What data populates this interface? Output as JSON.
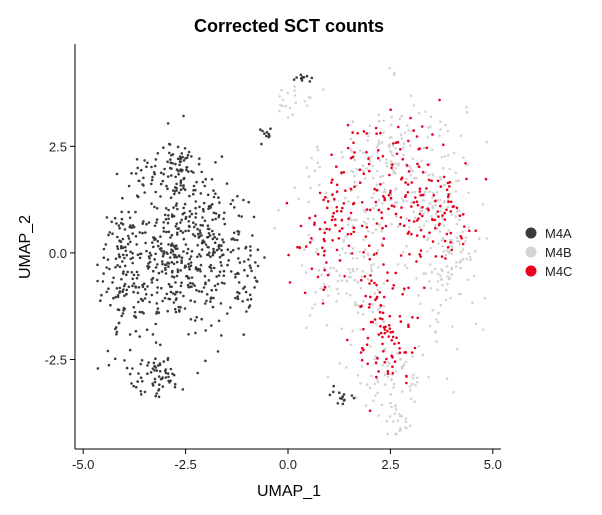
{
  "chart_data": {
    "type": "scatter",
    "title": "Corrected SCT counts",
    "xlabel": "UMAP_1",
    "ylabel": "UMAP_2",
    "xlim": [
      -5.2,
      5.2
    ],
    "ylim": [
      -4.6,
      4.9
    ],
    "xticks": [
      -5.0,
      -2.5,
      0.0,
      2.5,
      5.0
    ],
    "xtick_labels": [
      "-5.0",
      "-2.5",
      "0.0",
      "2.5",
      "5.0"
    ],
    "yticks": [
      -2.5,
      0.0,
      2.5
    ],
    "ytick_labels": [
      "-2.5",
      "0.0",
      "2.5"
    ],
    "grid": false,
    "legend_position": "right",
    "series": [
      {
        "name": "M4A",
        "color": "#3f3a3a",
        "clusters": [
          {
            "center": [
              -3.9,
              -0.4
            ],
            "spread": [
              0.45,
              1.35
            ],
            "n": 190
          },
          {
            "center": [
              -2.8,
              0.1
            ],
            "spread": [
              0.5,
              1.25
            ],
            "n": 230
          },
          {
            "center": [
              -1.9,
              0.1
            ],
            "spread": [
              0.45,
              1.05
            ],
            "n": 170
          },
          {
            "center": [
              -2.7,
              2.0
            ],
            "spread": [
              0.5,
              0.4
            ],
            "n": 70
          },
          {
            "center": [
              -3.2,
              -2.9
            ],
            "spread": [
              0.5,
              0.35
            ],
            "n": 60
          },
          {
            "center": [
              -1.1,
              -0.4
            ],
            "spread": [
              0.3,
              0.9
            ],
            "n": 55
          },
          {
            "center": [
              -0.6,
              2.8
            ],
            "spread": [
              0.2,
              0.15
            ],
            "n": 10
          },
          {
            "center": [
              0.4,
              4.1
            ],
            "spread": [
              0.25,
              0.12
            ],
            "n": 12
          },
          {
            "center": [
              1.3,
              -3.4
            ],
            "spread": [
              0.2,
              0.2
            ],
            "n": 14
          }
        ]
      },
      {
        "name": "M4B",
        "color": "#d3d3d3",
        "clusters": [
          {
            "center": [
              2.6,
              1.9
            ],
            "spread": [
              1.15,
              1.2
            ],
            "n": 240
          },
          {
            "center": [
              3.9,
              0.0
            ],
            "spread": [
              0.55,
              1.4
            ],
            "n": 130
          },
          {
            "center": [
              1.5,
              -0.3
            ],
            "spread": [
              0.9,
              1.1
            ],
            "n": 110
          },
          {
            "center": [
              2.5,
              -2.9
            ],
            "spread": [
              0.7,
              0.55
            ],
            "n": 70
          },
          {
            "center": [
              2.7,
              -3.9
            ],
            "spread": [
              0.35,
              0.3
            ],
            "n": 25
          },
          {
            "center": [
              0.1,
              3.6
            ],
            "spread": [
              0.35,
              0.3
            ],
            "n": 20
          }
        ]
      },
      {
        "name": "M4C",
        "color": "#e8001f",
        "clusters": [
          {
            "center": [
              2.6,
              1.5
            ],
            "spread": [
              1.05,
              1.1
            ],
            "n": 160
          },
          {
            "center": [
              2.4,
              -1.6
            ],
            "spread": [
              0.55,
              1.0
            ],
            "n": 100
          },
          {
            "center": [
              0.9,
              0.4
            ],
            "spread": [
              0.6,
              0.9
            ],
            "n": 60
          },
          {
            "center": [
              3.8,
              0.6
            ],
            "spread": [
              0.4,
              0.8
            ],
            "n": 40
          }
        ]
      }
    ]
  }
}
